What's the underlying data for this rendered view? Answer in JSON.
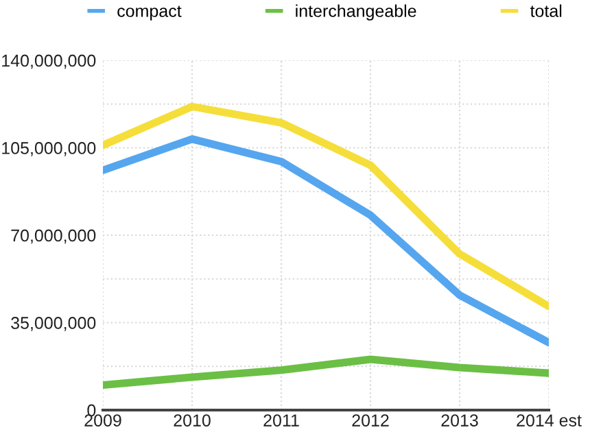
{
  "chart_data": {
    "type": "line",
    "categories": [
      "2009",
      "2010",
      "2011",
      "2012",
      "2013",
      "2014 est"
    ],
    "series": [
      {
        "name": "compact",
        "color": "#55a6ee",
        "values": [
          96000000,
          108500000,
          99500000,
          78000000,
          46000000,
          27000000
        ]
      },
      {
        "name": "interchangeable",
        "color": "#6bbf45",
        "values": [
          10000000,
          13200000,
          16000000,
          20300000,
          17000000,
          14800000
        ]
      },
      {
        "name": "total",
        "color": "#f5de3a",
        "values": [
          106000000,
          121500000,
          115000000,
          98000000,
          62500000,
          41500000
        ]
      }
    ],
    "ylim": [
      0,
      140000000
    ],
    "yticks": [
      {
        "value": 0,
        "label": "0"
      },
      {
        "value": 17500000,
        "label": null
      },
      {
        "value": 35000000,
        "label": "35,000,000"
      },
      {
        "value": 52500000,
        "label": null
      },
      {
        "value": 70000000,
        "label": "70,000,000"
      },
      {
        "value": 87500000,
        "label": null
      },
      {
        "value": 105000000,
        "label": "105,000,000"
      },
      {
        "value": 122500000,
        "label": null
      },
      {
        "value": 140000000,
        "label": "140,000,000"
      }
    ],
    "grid": true,
    "legend": "top",
    "marker": "none",
    "line_style": "solid"
  }
}
